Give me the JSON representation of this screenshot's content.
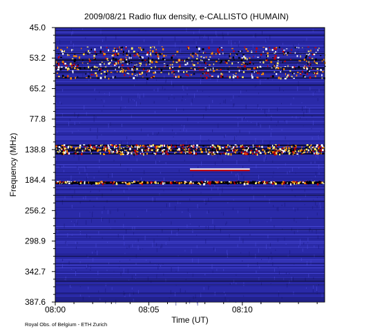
{
  "title": "2009/08/21  Radio flux density, e-CALLISTO (HUMAIN)",
  "footer": "Royal Obs. of Belgium - ETH Zurich",
  "colors": {
    "background": "#2a2aa8",
    "noise_dark": "#1a1a80",
    "noise_light": "#4848d8",
    "burst_black": "#000000",
    "burst_red": "#c80000",
    "burst_orange": "#ff8c00",
    "burst_yellow": "#ffee66",
    "burst_white": "#ffffff"
  },
  "chart_data": {
    "type": "heatmap",
    "title": "2009/08/21  Radio flux density, e-CALLISTO (HUMAIN)",
    "xlabel": "Time (UT)",
    "ylabel": "Frequency (MHz)",
    "x_ticks": [
      "08:00",
      "08:05",
      "08:10"
    ],
    "y_ticks": [
      "45.0",
      "53.2",
      "65.2",
      "77.8",
      "138.8",
      "184.4",
      "256.2",
      "298.9",
      "342.7",
      "387.6"
    ],
    "time_range_minutes": [
      0,
      14.4
    ],
    "frequency_range_mhz": [
      45.0,
      387.6
    ],
    "frequency_axis": "reversed, low frequency at top",
    "grid": false,
    "legend": "none",
    "features": [
      {
        "name": "broadband interference band",
        "freq_mhz": [
          50,
          61
        ],
        "time_min": [
          0,
          14.4
        ],
        "intensity": "high"
      },
      {
        "name": "interference band",
        "freq_mhz": [
          128,
          145
        ],
        "time_min": [
          0,
          14.4
        ],
        "intensity": "high"
      },
      {
        "name": "narrowband emission",
        "freq_mhz": [
          167,
          170
        ],
        "time_min": [
          7.2,
          10.4
        ],
        "intensity": "very high"
      },
      {
        "name": "interference band",
        "freq_mhz": [
          186,
          192
        ],
        "time_min": [
          0,
          14.4
        ],
        "intensity": "medium"
      }
    ]
  }
}
